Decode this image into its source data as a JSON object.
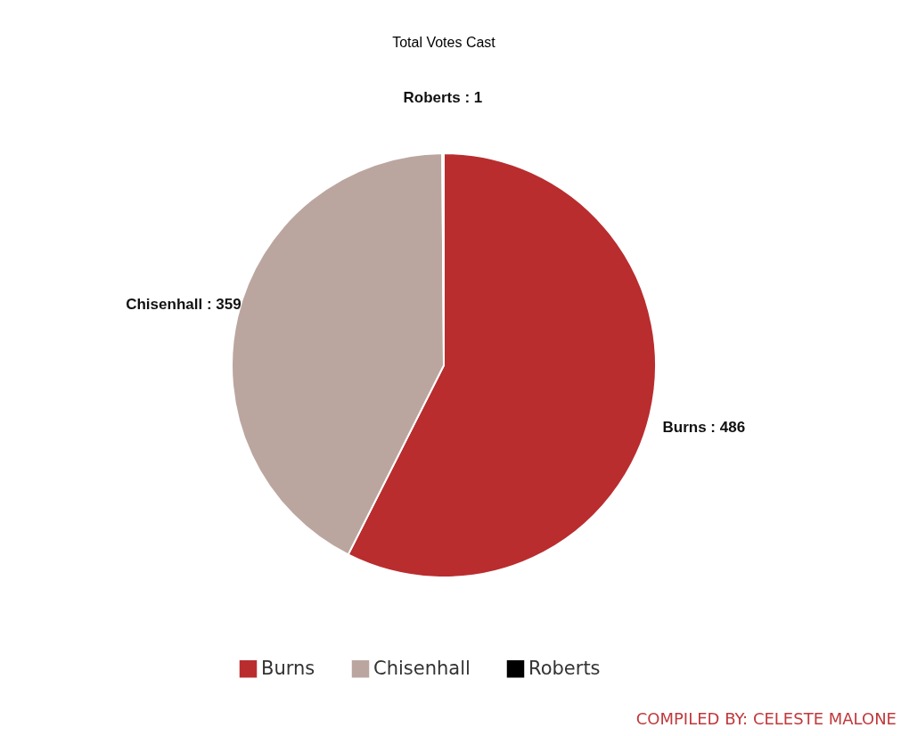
{
  "chart_data": {
    "type": "pie",
    "title": "Total Votes Cast",
    "categories": [
      "Burns",
      "Chisenhall",
      "Roberts"
    ],
    "values": [
      486,
      359,
      1
    ],
    "colors": [
      "#b92d2f",
      "#bba69f",
      "#000000"
    ],
    "value_labels": [
      "Burns : 486",
      "Chisenhall : 359",
      "Roberts : 1"
    ],
    "legend": "bottom",
    "annotations": [
      "COMPILED BY: CELESTE MALONE"
    ]
  }
}
